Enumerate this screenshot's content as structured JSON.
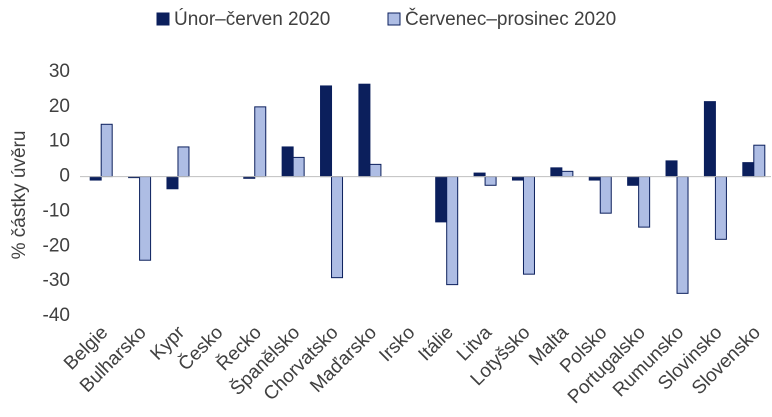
{
  "chart_data": {
    "type": "bar",
    "y_axis_label": "% částky úvěru",
    "categories": [
      "Belgie",
      "Bulharsko",
      "Kypr",
      "Česko",
      "Řecko",
      "Španělsko",
      "Chorvatsko",
      "Maďarsko",
      "Irsko",
      "Itálie",
      "Litva",
      "Lotyšsko",
      "Malta",
      "Polsko",
      "Portugalsko",
      "Rumunsko",
      "Slovinsko",
      "Slovensko"
    ],
    "series": [
      {
        "name": "Únor–červen 2020",
        "color": "#0b1f5c",
        "values": [
          -1,
          -0.3,
          -3.5,
          0,
          -0.5,
          8.5,
          26,
          26.5,
          0,
          -13,
          1,
          -1,
          2.5,
          -1,
          -2.5,
          4.5,
          21.5,
          4
        ]
      },
      {
        "name": "Červenec–prosinec 2020",
        "color": "#aebde4",
        "values": [
          15,
          -24,
          8.5,
          0,
          20,
          5.5,
          -29,
          3.5,
          0,
          -31,
          -2.5,
          -28,
          1.5,
          -10.5,
          -14.5,
          -33.5,
          -18,
          9
        ]
      }
    ],
    "ylim": [
      -40,
      30
    ],
    "yticks": [
      -40,
      -30,
      -20,
      -10,
      0,
      10,
      20,
      30
    ],
    "grid": false,
    "legend": "top"
  }
}
